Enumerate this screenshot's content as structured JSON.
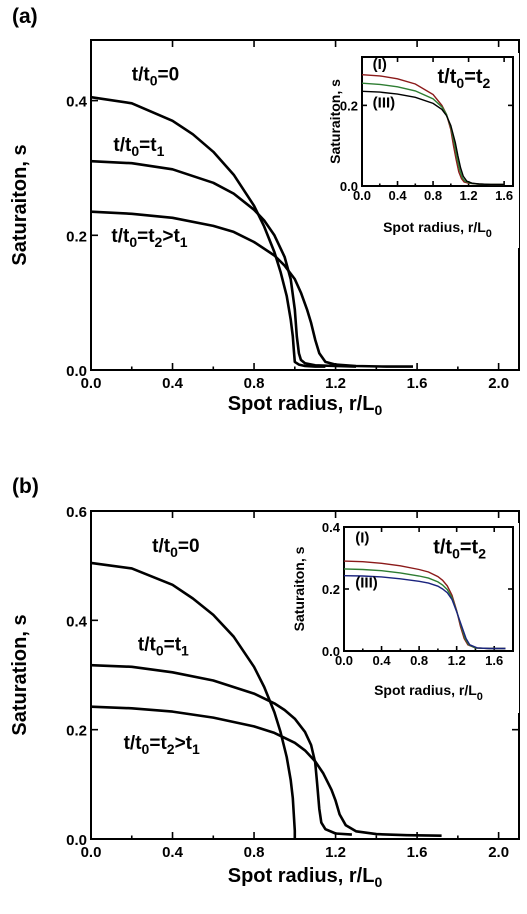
{
  "chart_data": [
    {
      "panel_label": "(a)",
      "type": "line",
      "xlabel": "Spot radius, r/L",
      "xlabel_sub": "0",
      "ylabel": "Saturaiton, s",
      "xlim": [
        0.0,
        2.1
      ],
      "ylim": [
        0.0,
        0.49
      ],
      "xticks": [
        0.0,
        0.4,
        0.8,
        1.2,
        1.6,
        2.0
      ],
      "xtick_labels": [
        "0.0",
        "0.4",
        "0.8",
        "1.2",
        "1.6",
        "2.0"
      ],
      "yticks": [
        0.0,
        0.2,
        0.4
      ],
      "ytick_labels": [
        "0.0",
        "0.2",
        "0.4"
      ],
      "annotations": [
        {
          "text": "t/t",
          "sub": "0",
          "rest": "=0",
          "x": 0.2,
          "y": 0.43
        },
        {
          "text": "t/t",
          "sub": "0",
          "rest": "=t",
          "sub2": "1",
          "x": 0.11,
          "y": 0.325
        },
        {
          "text": "t/t",
          "sub": "0",
          "rest": "=t",
          "sub2": "2",
          "rest2": ">t",
          "sub3": "1",
          "x": 0.1,
          "y": 0.19
        }
      ],
      "series": [
        {
          "color": "#000000",
          "x": [
            0,
            0.2,
            0.4,
            0.5,
            0.6,
            0.7,
            0.8,
            0.85,
            0.9,
            0.93,
            0.96,
            0.98,
            0.99,
            0.995,
            1.0,
            1.02,
            1.05,
            1.1,
            1.15
          ],
          "y": [
            0.405,
            0.396,
            0.37,
            0.35,
            0.324,
            0.29,
            0.244,
            0.213,
            0.175,
            0.146,
            0.11,
            0.075,
            0.05,
            0.03,
            0.012,
            0.008,
            0.006,
            0.005,
            0.005
          ]
        },
        {
          "color": "#000000",
          "x": [
            0,
            0.2,
            0.4,
            0.6,
            0.7,
            0.8,
            0.85,
            0.9,
            0.95,
            0.98,
            1.0,
            1.01,
            1.02,
            1.03,
            1.05,
            1.1,
            1.2,
            1.3
          ],
          "y": [
            0.31,
            0.307,
            0.298,
            0.278,
            0.262,
            0.238,
            0.222,
            0.2,
            0.168,
            0.135,
            0.09,
            0.05,
            0.025,
            0.015,
            0.01,
            0.007,
            0.006,
            0.005
          ]
        },
        {
          "color": "#000000",
          "x": [
            0,
            0.2,
            0.4,
            0.6,
            0.7,
            0.8,
            0.9,
            0.95,
            1.0,
            1.03,
            1.06,
            1.08,
            1.1,
            1.12,
            1.15,
            1.2,
            1.3,
            1.45,
            1.58
          ],
          "y": [
            0.235,
            0.232,
            0.226,
            0.214,
            0.205,
            0.19,
            0.17,
            0.155,
            0.135,
            0.115,
            0.09,
            0.07,
            0.045,
            0.025,
            0.012,
            0.008,
            0.006,
            0.005,
            0.005
          ]
        }
      ],
      "inset": {
        "type": "line",
        "xlabel": "Spot radius, r/L",
        "xlabel_sub": "0",
        "ylabel": "Saturaiton, s",
        "xlim": [
          0.0,
          1.7
        ],
        "ylim": [
          0.0,
          0.32
        ],
        "xticks": [
          0.0,
          0.4,
          0.8,
          1.2,
          1.6
        ],
        "xtick_labels": [
          "0.0",
          "0.4",
          "0.8",
          "1.2",
          "1.6"
        ],
        "yticks": [
          0.0,
          0.2
        ],
        "ytick_labels": [
          "0.0",
          "0.2"
        ],
        "annotations": [
          {
            "text": "(I)",
            "x": 0.12,
            "y": 0.29
          },
          {
            "text": "(III)",
            "x": 0.12,
            "y": 0.195
          },
          {
            "text": "t/t",
            "sub": "0",
            "rest": "=t",
            "sub2": "2",
            "x": 0.85,
            "y": 0.255
          }
        ],
        "series": [
          {
            "color": "#8b1a1a",
            "x": [
              0,
              0.2,
              0.4,
              0.6,
              0.8,
              0.9,
              0.95,
              1.0,
              1.03,
              1.06,
              1.09,
              1.12,
              1.15,
              1.2,
              1.3,
              1.45,
              1.6
            ],
            "y": [
              0.276,
              0.273,
              0.266,
              0.253,
              0.227,
              0.2,
              0.178,
              0.14,
              0.1,
              0.065,
              0.035,
              0.018,
              0.01,
              0.007,
              0.005,
              0.004,
              0.004
            ]
          },
          {
            "color": "#2e7d32",
            "x": [
              0,
              0.2,
              0.4,
              0.6,
              0.8,
              0.9,
              0.95,
              1.0,
              1.04,
              1.07,
              1.1,
              1.13,
              1.16,
              1.22,
              1.3,
              1.45,
              1.6
            ],
            "y": [
              0.255,
              0.252,
              0.246,
              0.236,
              0.216,
              0.196,
              0.178,
              0.146,
              0.105,
              0.07,
              0.04,
              0.02,
              0.012,
              0.007,
              0.005,
              0.004,
              0.004
            ]
          },
          {
            "color": "#000000",
            "x": [
              0,
              0.2,
              0.4,
              0.6,
              0.8,
              0.9,
              0.95,
              1.0,
              1.05,
              1.08,
              1.11,
              1.14,
              1.18,
              1.24,
              1.32,
              1.45,
              1.6
            ],
            "y": [
              0.235,
              0.233,
              0.228,
              0.22,
              0.205,
              0.19,
              0.175,
              0.15,
              0.108,
              0.075,
              0.045,
              0.024,
              0.012,
              0.007,
              0.005,
              0.004,
              0.004
            ]
          }
        ]
      }
    },
    {
      "panel_label": "(b)",
      "type": "line",
      "xlabel": "Spot radius, r/L",
      "xlabel_sub": "0",
      "ylabel": "Saturation, s",
      "xlim": [
        0.0,
        2.1
      ],
      "ylim": [
        0.0,
        0.6
      ],
      "xticks": [
        0.0,
        0.4,
        0.8,
        1.2,
        1.6,
        2.0
      ],
      "xtick_labels": [
        "0.0",
        "0.4",
        "0.8",
        "1.2",
        "1.6",
        "2.0"
      ],
      "yticks": [
        0.0,
        0.2,
        0.4,
        0.6
      ],
      "ytick_labels": [
        "0.0",
        "0.2",
        "0.4",
        "0.6"
      ],
      "annotations": [
        {
          "text": "t/t",
          "sub": "0",
          "rest": "=0",
          "x": 0.3,
          "y": 0.525
        },
        {
          "text": "t/t",
          "sub": "0",
          "rest": "=t",
          "sub2": "1",
          "x": 0.23,
          "y": 0.345
        },
        {
          "text": "t/t",
          "sub": "0",
          "rest": "=t",
          "sub2": "2",
          "rest2": ">t",
          "sub3": "1",
          "x": 0.16,
          "y": 0.165
        }
      ],
      "series": [
        {
          "color": "#000000",
          "x": [
            0,
            0.2,
            0.4,
            0.5,
            0.6,
            0.7,
            0.8,
            0.85,
            0.9,
            0.93,
            0.96,
            0.98,
            0.99,
            0.995,
            1.0,
            1.0
          ],
          "y": [
            0.505,
            0.495,
            0.465,
            0.44,
            0.41,
            0.37,
            0.315,
            0.278,
            0.232,
            0.196,
            0.15,
            0.108,
            0.075,
            0.045,
            0.015,
            0.0
          ]
        },
        {
          "color": "#000000",
          "x": [
            0,
            0.2,
            0.4,
            0.6,
            0.8,
            0.9,
            0.95,
            1.0,
            1.05,
            1.08,
            1.1,
            1.11,
            1.12,
            1.13,
            1.15,
            1.2,
            1.28
          ],
          "y": [
            0.318,
            0.315,
            0.305,
            0.29,
            0.266,
            0.248,
            0.236,
            0.22,
            0.196,
            0.172,
            0.14,
            0.1,
            0.055,
            0.03,
            0.018,
            0.01,
            0.008
          ]
        },
        {
          "color": "#000000",
          "x": [
            0,
            0.2,
            0.4,
            0.6,
            0.8,
            0.9,
            1.0,
            1.05,
            1.1,
            1.14,
            1.18,
            1.2,
            1.22,
            1.25,
            1.3,
            1.4,
            1.55,
            1.72
          ],
          "y": [
            0.242,
            0.239,
            0.233,
            0.222,
            0.206,
            0.194,
            0.176,
            0.162,
            0.142,
            0.12,
            0.09,
            0.07,
            0.045,
            0.025,
            0.014,
            0.009,
            0.007,
            0.006
          ]
        }
      ],
      "inset": {
        "type": "line",
        "xlabel": "Spot radius, r/L",
        "xlabel_sub": "0",
        "ylabel": "Saturaiton, s",
        "xlim": [
          0.0,
          1.8
        ],
        "ylim": [
          0.0,
          0.4
        ],
        "xticks": [
          0.0,
          0.4,
          0.8,
          1.2,
          1.6
        ],
        "xtick_labels": [
          "0.0",
          "0.4",
          "0.8",
          "1.2",
          "1.6"
        ],
        "yticks": [
          0.0,
          0.2,
          0.4
        ],
        "ytick_labels": [
          "0.0",
          "0.2",
          "0.4"
        ],
        "annotations": [
          {
            "text": "(I)",
            "x": 0.12,
            "y": 0.35
          },
          {
            "text": "(III)",
            "x": 0.12,
            "y": 0.205
          },
          {
            "text": "t/t",
            "sub": "0",
            "rest": "=t",
            "sub2": "2",
            "x": 0.95,
            "y": 0.315
          }
        ],
        "series": [
          {
            "color": "#8b1a1a",
            "x": [
              0,
              0.2,
              0.4,
              0.6,
              0.8,
              0.9,
              1.0,
              1.05,
              1.1,
              1.15,
              1.2,
              1.24,
              1.28,
              1.32,
              1.4,
              1.55,
              1.72
            ],
            "y": [
              0.29,
              0.288,
              0.283,
              0.275,
              0.263,
              0.255,
              0.24,
              0.228,
              0.21,
              0.18,
              0.13,
              0.08,
              0.04,
              0.02,
              0.01,
              0.008,
              0.008
            ]
          },
          {
            "color": "#2e7d32",
            "x": [
              0,
              0.2,
              0.4,
              0.6,
              0.8,
              0.9,
              1.0,
              1.05,
              1.1,
              1.15,
              1.2,
              1.25,
              1.29,
              1.33,
              1.4,
              1.55,
              1.72
            ],
            "y": [
              0.265,
              0.263,
              0.259,
              0.252,
              0.242,
              0.235,
              0.223,
              0.213,
              0.198,
              0.172,
              0.128,
              0.078,
              0.04,
              0.02,
              0.01,
              0.008,
              0.008
            ]
          },
          {
            "color": "#1a237e",
            "x": [
              0,
              0.2,
              0.4,
              0.6,
              0.8,
              0.9,
              1.0,
              1.05,
              1.1,
              1.15,
              1.2,
              1.26,
              1.3,
              1.34,
              1.42,
              1.55,
              1.72
            ],
            "y": [
              0.243,
              0.242,
              0.239,
              0.233,
              0.225,
              0.219,
              0.209,
              0.2,
              0.188,
              0.166,
              0.126,
              0.075,
              0.04,
              0.02,
              0.01,
              0.008,
              0.008
            ]
          }
        ]
      }
    }
  ]
}
